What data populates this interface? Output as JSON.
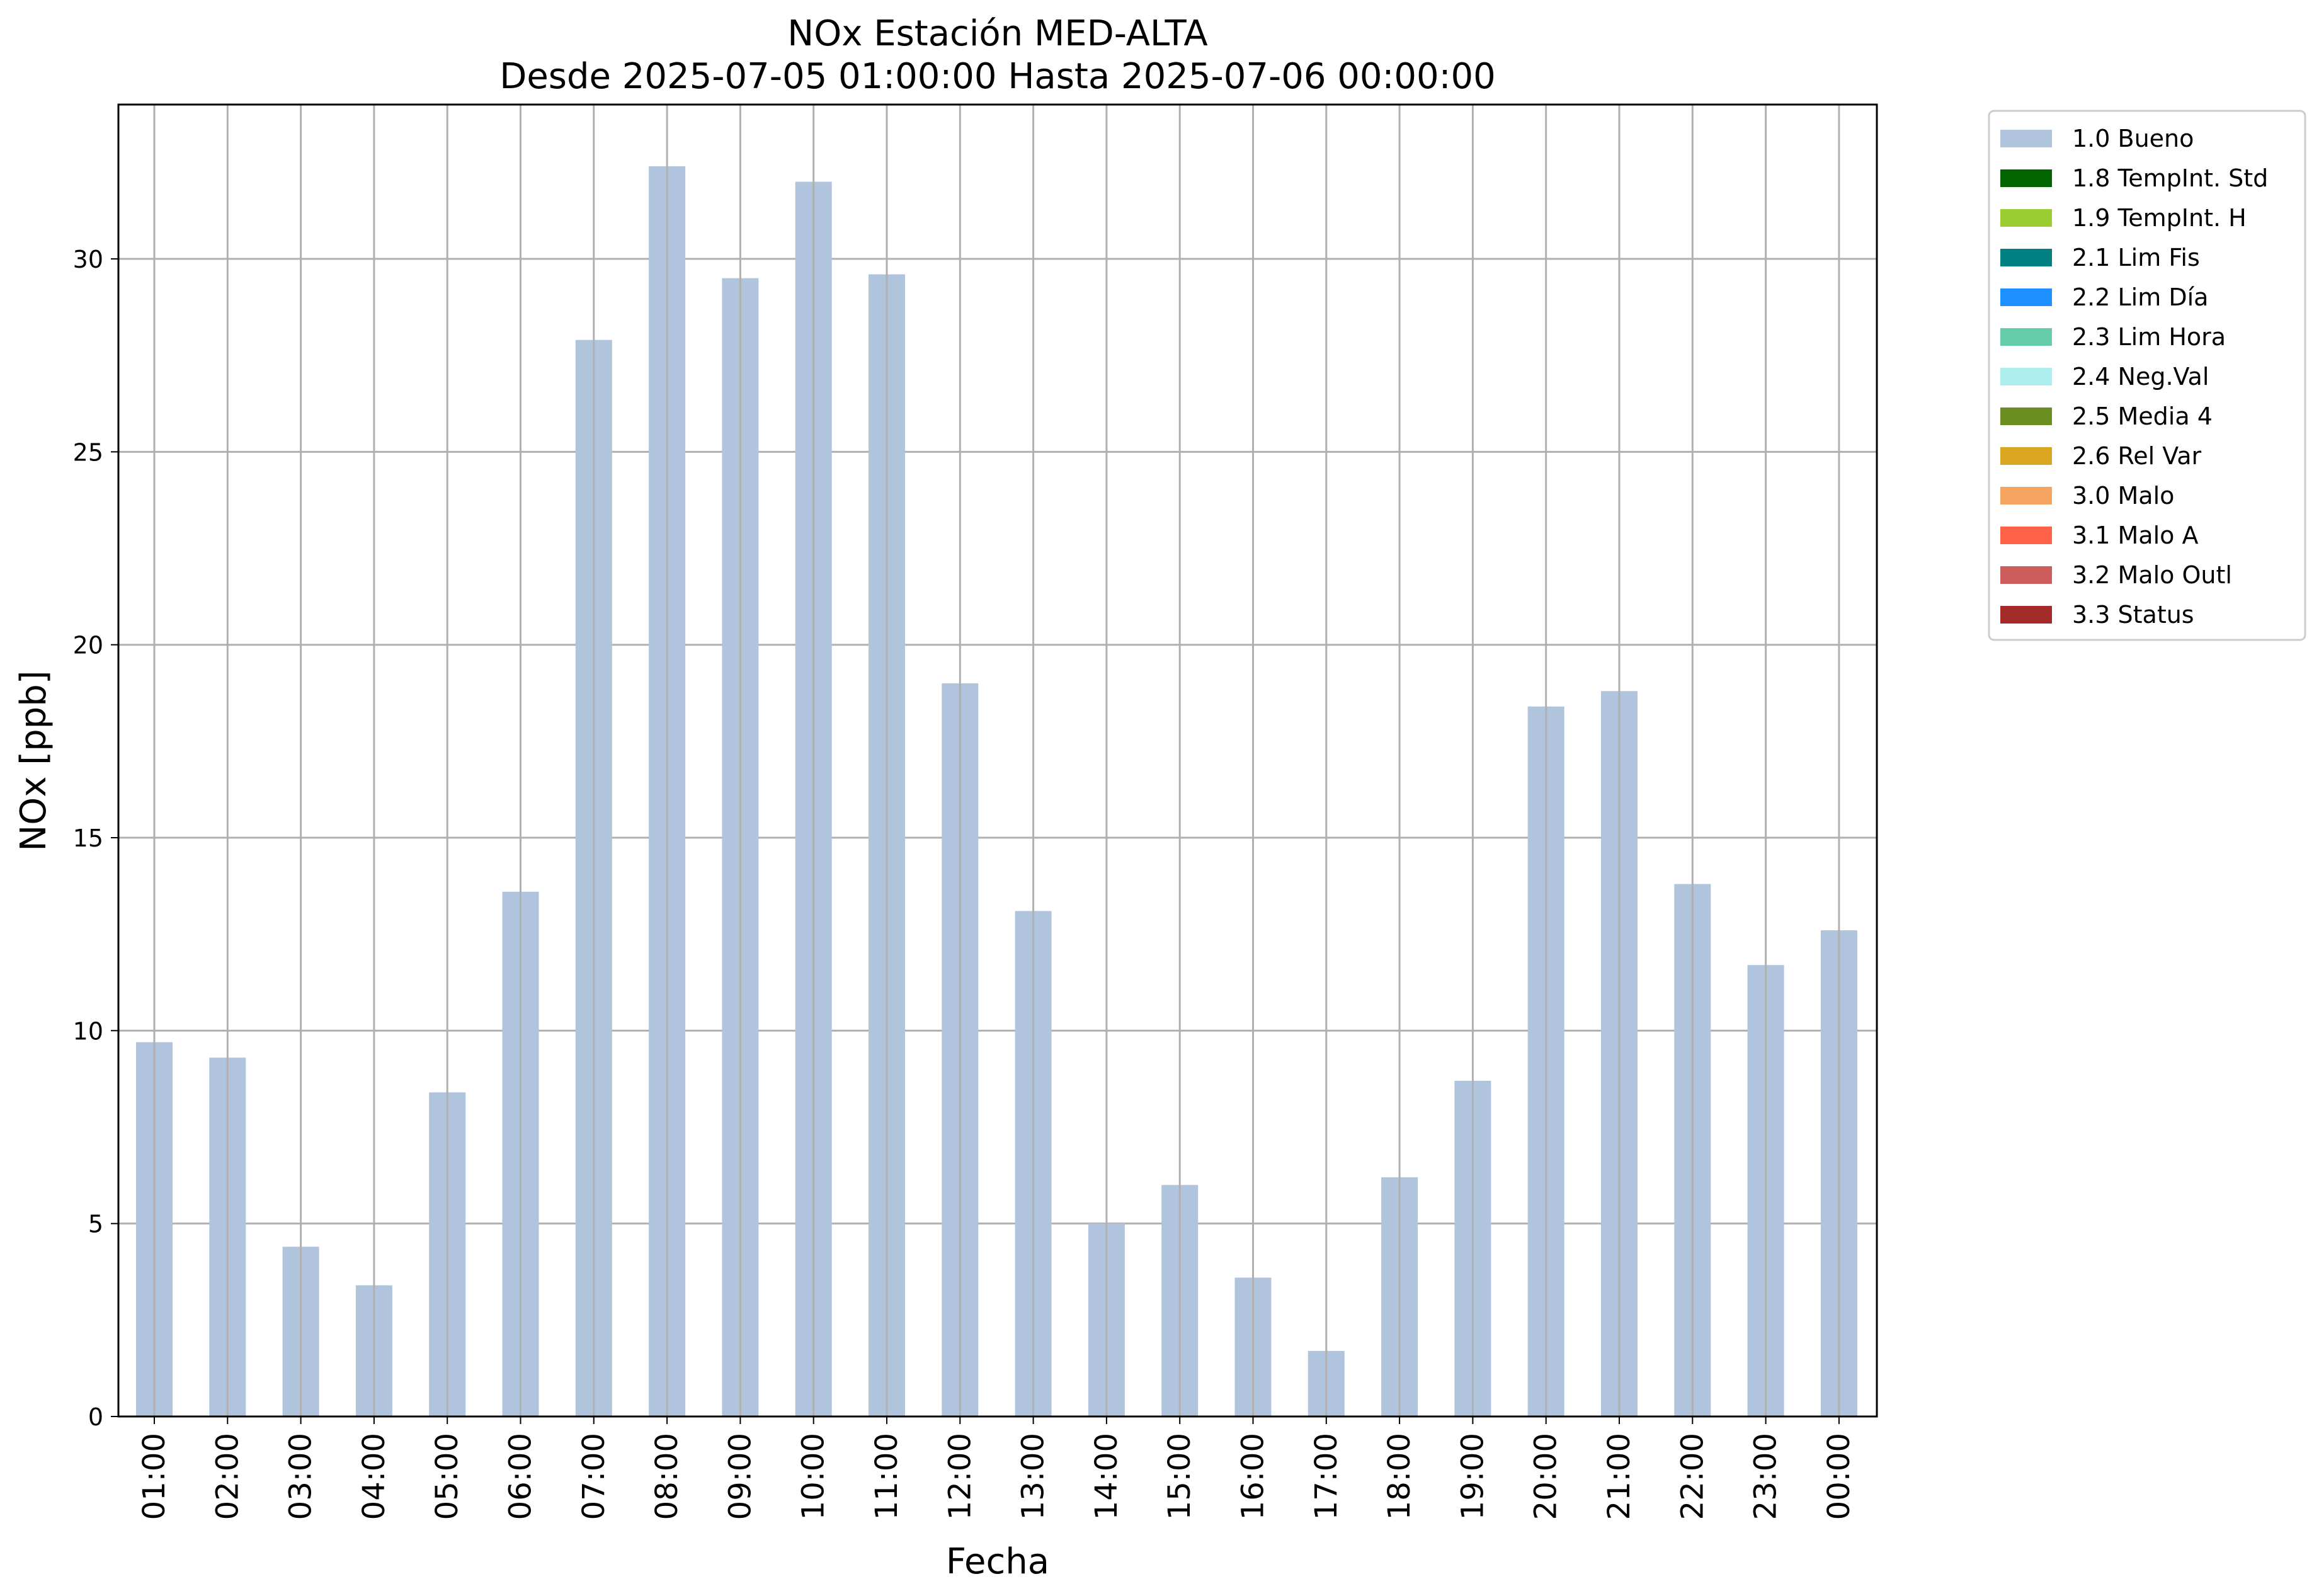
{
  "chart_data": {
    "type": "bar",
    "title": "NOx Estación MED-ALTA",
    "subtitle": "Desde 2025-07-05 01:00:00 Hasta 2025-07-06 00:00:00",
    "xlabel": "Fecha",
    "ylabel": "NOx [ppb]",
    "ylim": [
      0,
      34
    ],
    "yticks": [
      0,
      5,
      10,
      15,
      20,
      25,
      30
    ],
    "grid": true,
    "legend_position": "outside-top-right",
    "bar_color": "#b0c4de",
    "categories": [
      "01:00",
      "02:00",
      "03:00",
      "04:00",
      "05:00",
      "06:00",
      "07:00",
      "08:00",
      "09:00",
      "10:00",
      "11:00",
      "12:00",
      "13:00",
      "14:00",
      "15:00",
      "16:00",
      "17:00",
      "18:00",
      "19:00",
      "20:00",
      "21:00",
      "22:00",
      "23:00",
      "00:00"
    ],
    "values": [
      9.7,
      9.3,
      4.4,
      3.4,
      8.4,
      13.6,
      27.9,
      32.4,
      29.5,
      32.0,
      29.6,
      19.0,
      13.1,
      5.0,
      6.0,
      3.6,
      1.7,
      6.2,
      8.7,
      18.4,
      18.8,
      13.8,
      11.7,
      12.6
    ],
    "legend": [
      {
        "label": "1.0 Bueno",
        "color": "#b0c4de"
      },
      {
        "label": "1.8 TempInt. Std",
        "color": "#006400"
      },
      {
        "label": "1.9 TempInt. H",
        "color": "#9acd32"
      },
      {
        "label": "2.1 Lim Fis",
        "color": "#008080"
      },
      {
        "label": "2.2 Lim Día",
        "color": "#1e90ff"
      },
      {
        "label": "2.3 Lim Hora",
        "color": "#66cdaa"
      },
      {
        "label": "2.4 Neg.Val",
        "color": "#afeeee"
      },
      {
        "label": "2.5 Media 4",
        "color": "#6b8e23"
      },
      {
        "label": "2.6 Rel Var",
        "color": "#daa520"
      },
      {
        "label": "3.0 Malo",
        "color": "#f4a460"
      },
      {
        "label": "3.1 Malo A",
        "color": "#ff6347"
      },
      {
        "label": "3.2 Malo Outl",
        "color": "#cd5c5c"
      },
      {
        "label": "3.3 Status",
        "color": "#a52a2a"
      }
    ]
  }
}
